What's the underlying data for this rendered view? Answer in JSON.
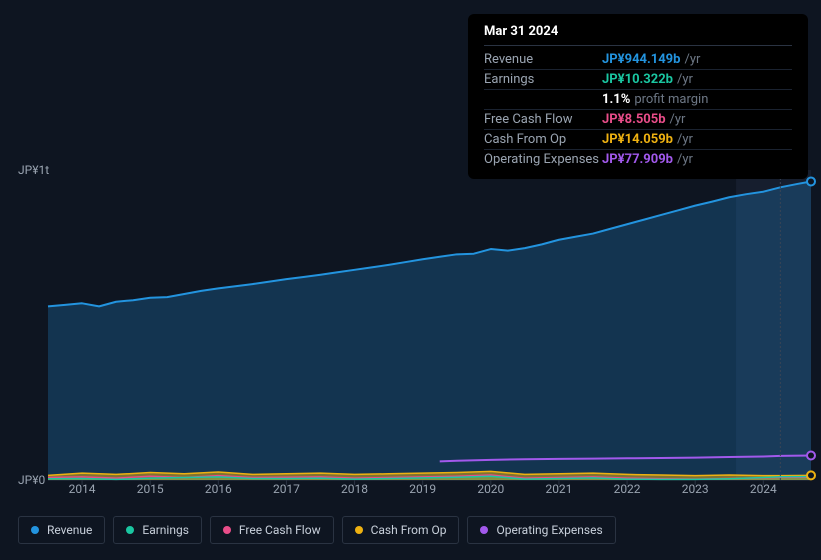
{
  "chart": {
    "type": "area",
    "background_color": "#0e1521",
    "grid_color": "#1f2836",
    "text_color": "#9aa4b1",
    "font_size": 12,
    "y_axis": {
      "min": 0,
      "max": 1000000000000,
      "ticks": [
        {
          "value": 1000000000000,
          "label": "JP¥1t"
        },
        {
          "value": 0,
          "label": "JP¥0"
        }
      ]
    },
    "x_axis": {
      "min": 2013.5,
      "max": 2024.7,
      "ticks": [
        2014,
        2015,
        2016,
        2017,
        2018,
        2019,
        2020,
        2021,
        2022,
        2023,
        2024
      ]
    },
    "marker_year": 2024.25,
    "future_band_start": 2023.6,
    "series": [
      {
        "id": "revenue",
        "label": "Revenue",
        "color": "#2394df",
        "fill_opacity": 0.25,
        "line_width": 2,
        "points": [
          [
            2013.5,
            560
          ],
          [
            2013.75,
            565
          ],
          [
            2014.0,
            570
          ],
          [
            2014.25,
            560
          ],
          [
            2014.5,
            575
          ],
          [
            2014.75,
            580
          ],
          [
            2015.0,
            588
          ],
          [
            2015.25,
            590
          ],
          [
            2015.5,
            600
          ],
          [
            2015.75,
            610
          ],
          [
            2016.0,
            618
          ],
          [
            2016.25,
            625
          ],
          [
            2016.5,
            632
          ],
          [
            2016.75,
            640
          ],
          [
            2017.0,
            648
          ],
          [
            2017.25,
            655
          ],
          [
            2017.5,
            662
          ],
          [
            2017.75,
            670
          ],
          [
            2018.0,
            678
          ],
          [
            2018.25,
            686
          ],
          [
            2018.5,
            694
          ],
          [
            2018.75,
            703
          ],
          [
            2019.0,
            712
          ],
          [
            2019.25,
            720
          ],
          [
            2019.5,
            728
          ],
          [
            2019.75,
            730
          ],
          [
            2020.0,
            745
          ],
          [
            2020.25,
            740
          ],
          [
            2020.5,
            748
          ],
          [
            2020.75,
            760
          ],
          [
            2021.0,
            775
          ],
          [
            2021.25,
            785
          ],
          [
            2021.5,
            795
          ],
          [
            2021.75,
            810
          ],
          [
            2022.0,
            825
          ],
          [
            2022.25,
            840
          ],
          [
            2022.5,
            855
          ],
          [
            2022.75,
            870
          ],
          [
            2023.0,
            885
          ],
          [
            2023.25,
            898
          ],
          [
            2023.5,
            912
          ],
          [
            2023.75,
            922
          ],
          [
            2024.0,
            930
          ],
          [
            2024.25,
            944.149
          ],
          [
            2024.5,
            955
          ],
          [
            2024.7,
            963
          ]
        ]
      },
      {
        "id": "operating_expenses",
        "label": "Operating Expenses",
        "color": "#a259ec",
        "fill_opacity": 0.0,
        "line_width": 2,
        "points": [
          [
            2019.25,
            60
          ],
          [
            2019.5,
            62
          ],
          [
            2020.0,
            65
          ],
          [
            2020.5,
            67
          ],
          [
            2021.0,
            68
          ],
          [
            2021.5,
            69
          ],
          [
            2022.0,
            70
          ],
          [
            2022.5,
            71
          ],
          [
            2023.0,
            72
          ],
          [
            2023.5,
            74
          ],
          [
            2024.0,
            76
          ],
          [
            2024.25,
            77.909
          ],
          [
            2024.7,
            79
          ]
        ]
      },
      {
        "id": "cash_from_op",
        "label": "Cash From Op",
        "color": "#eeb111",
        "fill_opacity": 0.5,
        "line_width": 1.5,
        "points": [
          [
            2013.5,
            15
          ],
          [
            2014.0,
            22
          ],
          [
            2014.5,
            18
          ],
          [
            2015.0,
            24
          ],
          [
            2015.5,
            20
          ],
          [
            2016.0,
            26
          ],
          [
            2016.5,
            18
          ],
          [
            2017.0,
            20
          ],
          [
            2017.5,
            22
          ],
          [
            2018.0,
            18
          ],
          [
            2018.5,
            20
          ],
          [
            2019.0,
            22
          ],
          [
            2019.5,
            24
          ],
          [
            2020.0,
            28
          ],
          [
            2020.5,
            18
          ],
          [
            2021.0,
            20
          ],
          [
            2021.5,
            22
          ],
          [
            2022.0,
            18
          ],
          [
            2022.5,
            16
          ],
          [
            2023.0,
            14
          ],
          [
            2023.5,
            16
          ],
          [
            2024.0,
            14
          ],
          [
            2024.25,
            14.059
          ],
          [
            2024.7,
            15
          ]
        ]
      },
      {
        "id": "free_cash_flow",
        "label": "Free Cash Flow",
        "color": "#e94d89",
        "fill_opacity": 0.0,
        "line_width": 1.5,
        "points": [
          [
            2013.5,
            8
          ],
          [
            2014.0,
            10
          ],
          [
            2014.5,
            6
          ],
          [
            2015.0,
            12
          ],
          [
            2015.5,
            8
          ],
          [
            2016.0,
            14
          ],
          [
            2016.5,
            8
          ],
          [
            2017.0,
            9
          ],
          [
            2017.5,
            10
          ],
          [
            2018.0,
            6
          ],
          [
            2018.5,
            8
          ],
          [
            2019.0,
            10
          ],
          [
            2019.5,
            12
          ],
          [
            2020.0,
            16
          ],
          [
            2020.5,
            6
          ],
          [
            2021.0,
            8
          ],
          [
            2021.5,
            10
          ],
          [
            2022.0,
            6
          ],
          [
            2022.5,
            4
          ],
          [
            2023.0,
            3
          ],
          [
            2023.5,
            5
          ],
          [
            2024.0,
            7
          ],
          [
            2024.25,
            8.505
          ],
          [
            2024.7,
            9
          ]
        ]
      },
      {
        "id": "earnings",
        "label": "Earnings",
        "color": "#1ac6a1",
        "fill_opacity": 0.4,
        "line_width": 1.5,
        "points": [
          [
            2013.5,
            4
          ],
          [
            2014.0,
            5
          ],
          [
            2014.5,
            2
          ],
          [
            2015.0,
            6
          ],
          [
            2015.5,
            8
          ],
          [
            2016.0,
            10
          ],
          [
            2016.5,
            5
          ],
          [
            2017.0,
            5
          ],
          [
            2017.5,
            6
          ],
          [
            2018.0,
            3
          ],
          [
            2018.5,
            5
          ],
          [
            2019.0,
            7
          ],
          [
            2019.5,
            9
          ],
          [
            2020.0,
            12
          ],
          [
            2020.5,
            3
          ],
          [
            2021.0,
            5
          ],
          [
            2021.5,
            7
          ],
          [
            2022.0,
            3
          ],
          [
            2022.5,
            2
          ],
          [
            2023.0,
            2
          ],
          [
            2023.5,
            4
          ],
          [
            2024.0,
            8
          ],
          [
            2024.25,
            10.322
          ],
          [
            2024.7,
            11
          ]
        ]
      }
    ],
    "markers": [
      {
        "series": "revenue",
        "x": 2024.7,
        "y": 963,
        "color": "#2394df"
      },
      {
        "series": "operating_expenses",
        "x": 2024.7,
        "y": 79,
        "color": "#a259ec"
      },
      {
        "series": "cash_from_op",
        "x": 2024.7,
        "y": 15,
        "color": "#eeb111"
      }
    ]
  },
  "tooltip": {
    "date": "Mar 31 2024",
    "rows": [
      {
        "label": "Revenue",
        "value": "JP¥944.149b",
        "unit": "/yr",
        "color": "#2394df"
      },
      {
        "label": "Earnings",
        "value": "JP¥10.322b",
        "unit": "/yr",
        "color": "#1ac6a1"
      },
      {
        "label": "",
        "value": "1.1%",
        "unit": "profit margin",
        "color": "#ffffff"
      },
      {
        "label": "Free Cash Flow",
        "value": "JP¥8.505b",
        "unit": "/yr",
        "color": "#e94d89"
      },
      {
        "label": "Cash From Op",
        "value": "JP¥14.059b",
        "unit": "/yr",
        "color": "#eeb111"
      },
      {
        "label": "Operating Expenses",
        "value": "JP¥77.909b",
        "unit": "/yr",
        "color": "#a259ec"
      }
    ]
  },
  "legend": [
    {
      "id": "revenue",
      "label": "Revenue",
      "color": "#2394df"
    },
    {
      "id": "earnings",
      "label": "Earnings",
      "color": "#1ac6a1"
    },
    {
      "id": "free_cash_flow",
      "label": "Free Cash Flow",
      "color": "#e94d89"
    },
    {
      "id": "cash_from_op",
      "label": "Cash From Op",
      "color": "#eeb111"
    },
    {
      "id": "operating_expenses",
      "label": "Operating Expenses",
      "color": "#a259ec"
    }
  ]
}
